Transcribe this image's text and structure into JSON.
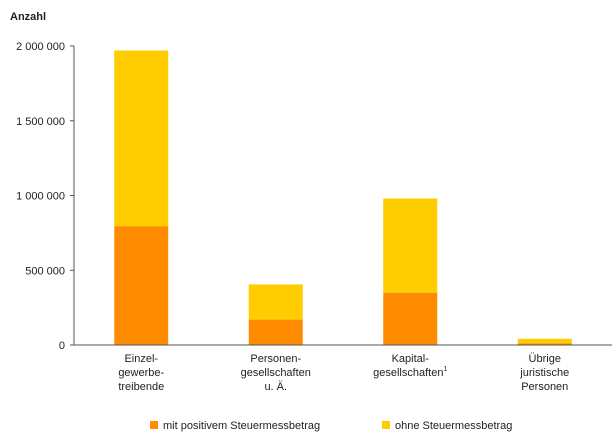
{
  "chart_data": {
    "type": "bar",
    "stacked": true,
    "ylabel": "Anzahl",
    "ylim": [
      0,
      2000000
    ],
    "yticks": [
      0,
      500000,
      1000000,
      1500000,
      2000000
    ],
    "ytick_labels": [
      "0",
      "500 000",
      "1 000 000",
      "1 500 000",
      "2 000 000"
    ],
    "grid": false,
    "legend_position": "bottom",
    "categories": [
      {
        "lines": [
          "Einzel-",
          "gewerbe-",
          "treibende"
        ]
      },
      {
        "lines": [
          "Personen-",
          "gesellschaften",
          "u. Ä."
        ]
      },
      {
        "lines": [
          "Kapital-",
          "gesellschaften"
        ],
        "footnote": "1"
      },
      {
        "lines": [
          "Übrige",
          "juristische",
          "Personen"
        ]
      }
    ],
    "series": [
      {
        "name": "mit positivem Steuermessbetrag",
        "color": "#FF8C00",
        "values": [
          795000,
          170000,
          350000,
          12000
        ]
      },
      {
        "name": "ohne Steuermessbetrag",
        "color": "#FFCC00",
        "values": [
          1175000,
          235000,
          630000,
          30000
        ]
      }
    ]
  }
}
